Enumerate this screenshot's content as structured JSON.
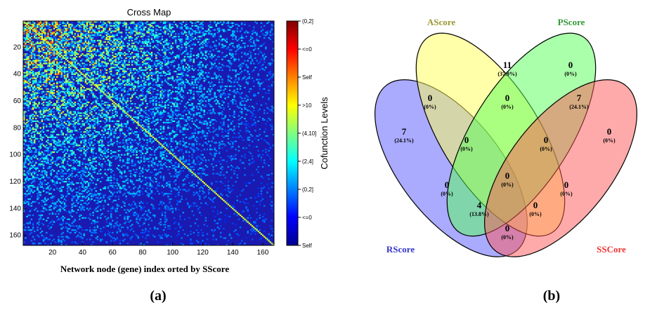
{
  "panel_labels": [
    "(a)",
    "(b)"
  ],
  "chart_data": [
    {
      "type": "heatmap",
      "title": "Cross Map",
      "xlabel": "Network node (gene) index orted by SScore",
      "ylabel": "",
      "x_ticks": [
        20,
        40,
        60,
        80,
        100,
        120,
        140,
        160
      ],
      "y_ticks": [
        20,
        40,
        60,
        80,
        100,
        120,
        140,
        160
      ],
      "xlim": [
        1,
        167
      ],
      "ylim": [
        1,
        167
      ],
      "grid": false,
      "n_nodes": 167,
      "colorbar": {
        "label": "Cofunction Levels",
        "tick_labels": [
          "(0,2]",
          "<=0",
          "Self",
          ">10",
          "(4,10]",
          "(2,4]",
          "(0,2]",
          "<=0",
          "Self"
        ],
        "colors": [
          "#7f0000",
          "#ff0000",
          "#ff8000",
          "#ffff00",
          "#80ff80",
          "#00ffff",
          "#0080ff",
          "#0000ff",
          "#00008f"
        ]
      },
      "pattern": {
        "background_level": "<=0",
        "diagonal": "Self",
        "high_density_region": "upper-left (nodes 1-90)"
      }
    },
    {
      "type": "venn",
      "sets": [
        {
          "name": "AScore",
          "color": "#ffff66",
          "label_color": "#999933"
        },
        {
          "name": "PScore",
          "color": "#66ff66",
          "label_color": "#339933"
        },
        {
          "name": "RScore",
          "color": "#6666ff",
          "label_color": "#3333cc"
        },
        {
          "name": "SSCore",
          "color": "#ff6666",
          "label_color": "#ee3333"
        }
      ],
      "regions": [
        {
          "sets": [
            "AScore"
          ],
          "count": "11",
          "percent": "(37.9%)"
        },
        {
          "sets": [
            "PScore"
          ],
          "count": "0",
          "percent": "(0%)"
        },
        {
          "sets": [
            "RScore"
          ],
          "count": "7",
          "percent": "(24.1%)"
        },
        {
          "sets": [
            "SSCore"
          ],
          "count": "0",
          "percent": "(0%)"
        },
        {
          "sets": [
            "AScore",
            "RScore"
          ],
          "count": "0",
          "percent": "(0%)"
        },
        {
          "sets": [
            "AScore",
            "PScore"
          ],
          "count": "0",
          "percent": "(0%)"
        },
        {
          "sets": [
            "PScore",
            "SSCore"
          ],
          "count": "7",
          "percent": "(24.1%)"
        },
        {
          "sets": [
            "AScore",
            "PScore",
            "RScore"
          ],
          "count": "0",
          "percent": "(0%)"
        },
        {
          "sets": [
            "AScore",
            "PScore",
            "SSCore"
          ],
          "count": "0",
          "percent": "(0%)"
        },
        {
          "sets": [
            "RScore",
            "PScore"
          ],
          "count": "0",
          "percent": "(0%)"
        },
        {
          "sets": [
            "AScore",
            "PScore",
            "RScore",
            "SSCore"
          ],
          "count": "0",
          "percent": "(0%)"
        },
        {
          "sets": [
            "AScore",
            "SSCore"
          ],
          "count": "0",
          "percent": "(0%)"
        },
        {
          "sets": [
            "RScore",
            "AScore",
            "SSCore"
          ],
          "count": "4",
          "percent": "(13.8%)"
        },
        {
          "sets": [
            "PScore",
            "RScore",
            "SSCore"
          ],
          "count": "0",
          "percent": "(0%)"
        },
        {
          "sets": [
            "RScore",
            "SSCore"
          ],
          "count": "0",
          "percent": "(0%)"
        }
      ]
    }
  ]
}
